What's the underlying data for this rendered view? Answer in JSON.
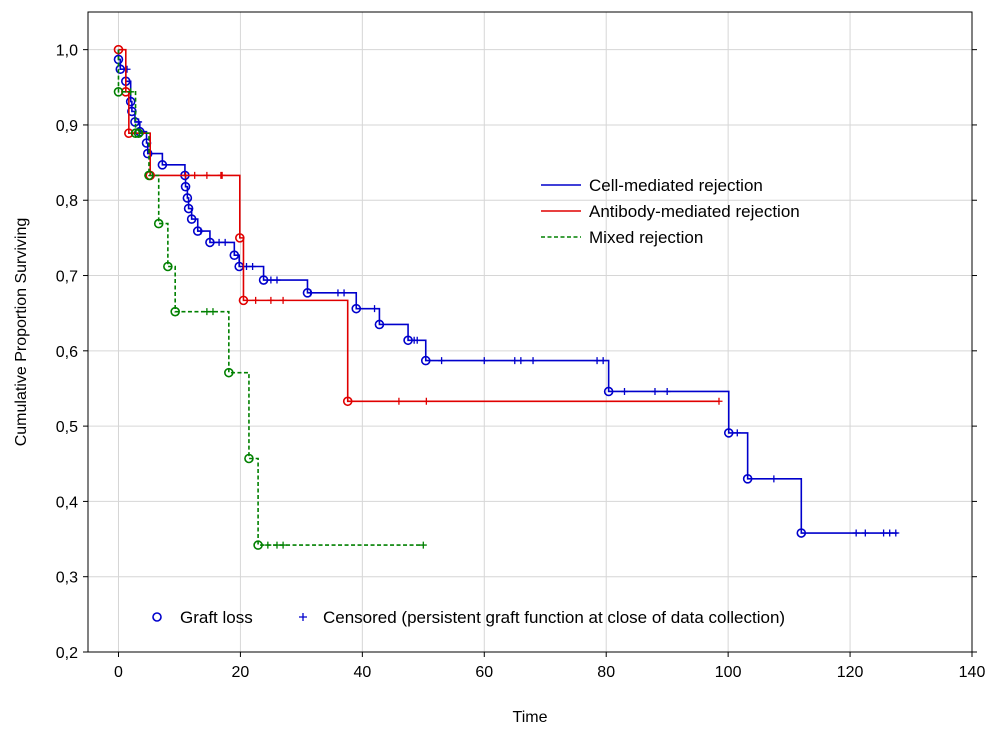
{
  "chart_data": {
    "type": "line",
    "subtype": "kaplan-meier-survival",
    "xlabel": "Time",
    "ylabel": "Cumulative Proportion Surviving",
    "xlim": [
      -5,
      140
    ],
    "ylim": [
      0.2,
      1.05
    ],
    "xticks": [
      0,
      20,
      40,
      60,
      80,
      100,
      120,
      140
    ],
    "yticks": [
      0.2,
      0.3,
      0.4,
      0.5,
      0.6,
      0.7,
      0.8,
      0.9,
      1.0
    ],
    "xtick_labels": [
      "0",
      "20",
      "40",
      "60",
      "80",
      "100",
      "120",
      "140"
    ],
    "ytick_labels": [
      "0,2",
      "0,3",
      "0,4",
      "0,5",
      "0,6",
      "0,7",
      "0,8",
      "0,9",
      "1,0"
    ],
    "grid": true,
    "series": [
      {
        "name": "Cell-mediated rejection",
        "color": "#0000cc",
        "dash": "solid",
        "events": [
          [
            0.0,
            0.987
          ],
          [
            0.3,
            0.974
          ],
          [
            1.2,
            0.958
          ],
          [
            2.0,
            0.931
          ],
          [
            2.2,
            0.918
          ],
          [
            2.7,
            0.904
          ],
          [
            3.5,
            0.891
          ],
          [
            4.6,
            0.876
          ],
          [
            4.8,
            0.862
          ],
          [
            7.2,
            0.847
          ],
          [
            10.9,
            0.833
          ],
          [
            11.0,
            0.818
          ],
          [
            11.3,
            0.803
          ],
          [
            11.5,
            0.789
          ],
          [
            12.0,
            0.775
          ],
          [
            13.0,
            0.759
          ],
          [
            15.0,
            0.744
          ],
          [
            19.0,
            0.727
          ],
          [
            19.8,
            0.712
          ],
          [
            23.8,
            0.694
          ],
          [
            31.0,
            0.677
          ],
          [
            39.0,
            0.656
          ],
          [
            42.8,
            0.635
          ],
          [
            47.5,
            0.614
          ],
          [
            50.4,
            0.587
          ],
          [
            80.4,
            0.546
          ],
          [
            100.1,
            0.491
          ],
          [
            103.2,
            0.43
          ],
          [
            112.0,
            0.358
          ]
        ],
        "censored": [
          [
            1.4,
            0.974
          ],
          [
            3.3,
            0.904
          ],
          [
            13.5,
            0.759
          ],
          [
            16.5,
            0.744
          ],
          [
            17.5,
            0.744
          ],
          [
            21.0,
            0.712
          ],
          [
            22.0,
            0.712
          ],
          [
            25.0,
            0.694
          ],
          [
            26.0,
            0.694
          ],
          [
            31.5,
            0.677
          ],
          [
            36.0,
            0.677
          ],
          [
            37.0,
            0.677
          ],
          [
            42.0,
            0.656
          ],
          [
            48.5,
            0.614
          ],
          [
            49.0,
            0.614
          ],
          [
            53.0,
            0.587
          ],
          [
            60.0,
            0.587
          ],
          [
            65.0,
            0.587
          ],
          [
            66.0,
            0.587
          ],
          [
            68.0,
            0.587
          ],
          [
            78.5,
            0.587
          ],
          [
            79.5,
            0.587
          ],
          [
            83.0,
            0.546
          ],
          [
            88.0,
            0.546
          ],
          [
            90.0,
            0.546
          ],
          [
            101.5,
            0.491
          ],
          [
            107.5,
            0.43
          ],
          [
            121.0,
            0.358
          ],
          [
            122.5,
            0.358
          ],
          [
            125.5,
            0.358
          ],
          [
            126.5,
            0.358
          ],
          [
            127.5,
            0.358
          ]
        ],
        "end_x": 127.8
      },
      {
        "name": "Antibody-mediated rejection",
        "color": "#e00000",
        "dash": "solid",
        "events": [
          [
            0.0,
            1.0
          ],
          [
            1.2,
            0.944
          ],
          [
            1.7,
            0.889
          ],
          [
            5.2,
            0.833
          ],
          [
            19.9,
            0.75
          ],
          [
            20.5,
            0.667
          ],
          [
            37.6,
            0.533
          ]
        ],
        "censored": [
          [
            11.0,
            0.833
          ],
          [
            12.5,
            0.833
          ],
          [
            14.5,
            0.833
          ],
          [
            16.8,
            0.833
          ],
          [
            17.0,
            0.833
          ],
          [
            22.5,
            0.667
          ],
          [
            25.0,
            0.667
          ],
          [
            27.0,
            0.667
          ],
          [
            46.0,
            0.533
          ],
          [
            50.5,
            0.533
          ],
          [
            98.5,
            0.533
          ]
        ],
        "end_x": 98.5
      },
      {
        "name": "Mixed rejection",
        "color": "#008000",
        "dash": "dashed",
        "events": [
          [
            0.0,
            0.944
          ],
          [
            2.8,
            0.889
          ],
          [
            3.3,
            0.889
          ],
          [
            5.0,
            0.833
          ],
          [
            6.6,
            0.769
          ],
          [
            8.1,
            0.712
          ],
          [
            9.3,
            0.652
          ],
          [
            18.1,
            0.571
          ],
          [
            21.4,
            0.457
          ],
          [
            22.9,
            0.342
          ]
        ],
        "censored": [
          [
            2.0,
            0.944
          ],
          [
            14.5,
            0.652
          ],
          [
            15.5,
            0.652
          ],
          [
            24.5,
            0.342
          ],
          [
            26.0,
            0.342
          ],
          [
            27.0,
            0.342
          ],
          [
            50.0,
            0.342
          ]
        ],
        "end_x": 50.0
      }
    ],
    "legend": {
      "position": "center-right",
      "entries": [
        "Cell-mediated rejection",
        "Antibody-mediated rejection",
        "Mixed rejection"
      ]
    },
    "marker_legend": {
      "position": "bottom",
      "graft_loss_label": "Graft loss",
      "censored_label": "Censored (persistent graft function at close of data collection)"
    }
  }
}
